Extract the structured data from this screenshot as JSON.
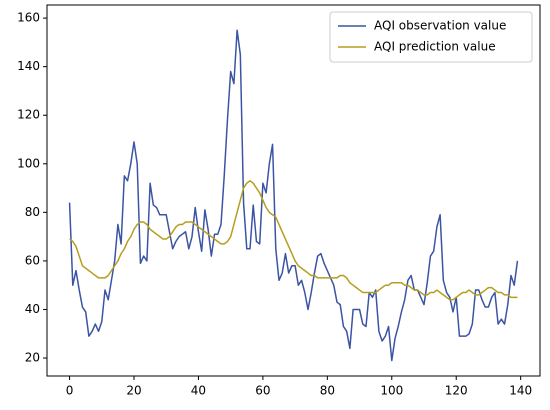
{
  "chart_data": {
    "type": "line",
    "x": [
      0,
      1,
      2,
      3,
      4,
      5,
      6,
      7,
      8,
      9,
      10,
      11,
      12,
      13,
      14,
      15,
      16,
      17,
      18,
      19,
      20,
      21,
      22,
      23,
      24,
      25,
      26,
      27,
      28,
      29,
      30,
      31,
      32,
      33,
      34,
      35,
      36,
      37,
      38,
      39,
      40,
      41,
      42,
      43,
      44,
      45,
      46,
      47,
      48,
      49,
      50,
      51,
      52,
      53,
      54,
      55,
      56,
      57,
      58,
      59,
      60,
      61,
      62,
      63,
      64,
      65,
      66,
      67,
      68,
      69,
      70,
      71,
      72,
      73,
      74,
      75,
      76,
      77,
      78,
      79,
      80,
      81,
      82,
      83,
      84,
      85,
      86,
      87,
      88,
      89,
      90,
      91,
      92,
      93,
      94,
      95,
      96,
      97,
      98,
      99,
      100,
      101,
      102,
      103,
      104,
      105,
      106,
      107,
      108,
      109,
      110,
      111,
      112,
      113,
      114,
      115,
      116,
      117,
      118,
      119,
      120,
      121,
      122,
      123,
      124,
      125,
      126,
      127,
      128,
      129,
      130,
      131,
      132,
      133,
      134,
      135,
      136,
      137,
      138,
      139
    ],
    "series": [
      {
        "name": "AQI observation value",
        "color": "#3b54a3",
        "values": [
          84,
          50,
          56,
          48,
          41,
          39,
          29,
          31,
          34,
          31,
          35,
          48,
          44,
          52,
          60,
          75,
          67,
          95,
          93,
          100,
          109,
          100,
          59,
          62,
          60,
          92,
          83,
          82,
          79,
          79,
          79,
          72,
          65,
          68,
          70,
          71,
          72,
          65,
          70,
          82,
          72,
          64,
          81,
          73,
          62,
          71,
          71,
          75,
          95,
          118,
          138,
          133,
          155,
          145,
          84,
          65,
          65,
          83,
          68,
          67,
          92,
          88,
          100,
          108,
          65,
          52,
          55,
          63,
          55,
          58,
          58,
          50,
          52,
          47,
          40,
          47,
          55,
          62,
          63,
          59,
          56,
          53,
          50,
          43,
          42,
          33,
          31,
          24,
          40,
          40,
          40,
          34,
          33,
          47,
          45,
          48,
          31,
          27,
          29,
          33,
          19,
          28,
          33,
          39,
          44,
          52,
          54,
          48,
          48,
          45,
          42,
          51,
          62,
          64,
          74,
          79,
          52,
          47,
          45,
          39,
          45,
          29,
          29,
          29,
          30,
          34,
          48,
          48,
          44,
          41,
          41,
          45,
          47,
          34,
          36,
          34,
          42,
          54,
          50,
          60
        ]
      },
      {
        "name": "AQI prediction value",
        "color": "#b59e1f",
        "values": [
          69,
          68,
          66,
          62,
          58,
          57,
          56,
          55,
          54,
          53,
          53,
          53,
          54,
          56,
          58,
          60,
          63,
          65,
          68,
          70,
          73,
          75,
          76,
          76,
          75,
          73,
          72,
          71,
          70,
          69,
          69,
          70,
          72,
          74,
          75,
          75,
          76,
          76,
          76,
          75,
          74,
          73,
          72,
          71,
          70,
          69,
          68,
          67,
          67,
          68,
          70,
          75,
          80,
          85,
          90,
          92,
          93,
          92,
          90,
          88,
          85,
          82,
          80,
          79,
          78,
          75,
          72,
          69,
          66,
          63,
          60,
          58,
          57,
          56,
          55,
          54,
          54,
          53,
          53,
          53,
          53,
          53,
          53,
          53,
          54,
          54,
          53,
          51,
          50,
          49,
          48,
          47,
          47,
          47,
          47,
          47,
          48,
          49,
          50,
          50,
          51,
          51,
          51,
          51,
          50,
          50,
          49,
          48,
          48,
          47,
          46,
          46,
          47,
          47,
          48,
          47,
          46,
          45,
          44,
          44,
          45,
          46,
          47,
          47,
          48,
          47,
          46,
          46,
          47,
          48,
          49,
          49,
          48,
          47,
          47,
          46,
          46,
          45,
          45,
          45
        ]
      }
    ],
    "xlim": [
      -7,
      146
    ],
    "ylim": [
      12.6,
      165.4
    ],
    "xticks": [
      0,
      20,
      40,
      60,
      80,
      100,
      120,
      140
    ],
    "yticks": [
      20,
      40,
      60,
      80,
      100,
      120,
      140,
      160
    ],
    "legend": "upper right"
  }
}
